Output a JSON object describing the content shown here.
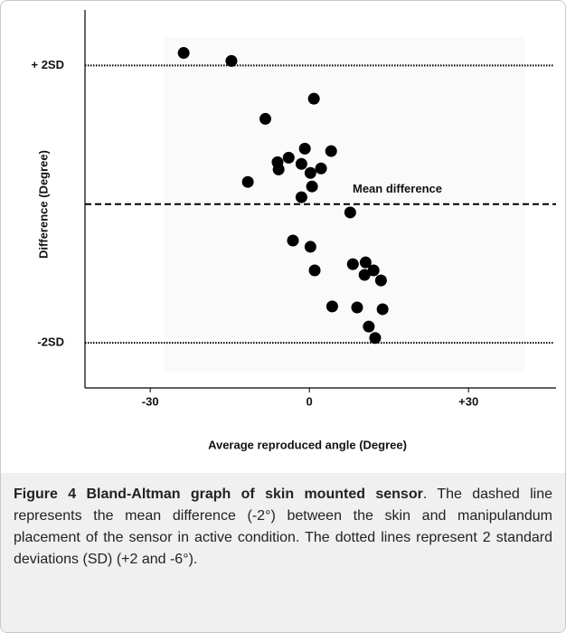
{
  "chart_data": {
    "type": "scatter",
    "ylabel": "Difference (Degree)",
    "xlabel": "Average reproduced angle (Degree)",
    "x": [
      -23.7,
      -14.7,
      0.85,
      -8.3,
      -0.85,
      4.1,
      -3.9,
      -6.0,
      -5.8,
      -1.5,
      2.2,
      0.2,
      -11.6,
      0.5,
      -1.5,
      7.7,
      -3.1,
      0.2,
      1.0,
      8.2,
      10.6,
      10.4,
      12.1,
      13.5,
      4.3,
      9.0,
      13.8,
      11.2,
      12.4
    ],
    "values": [
      2.36,
      2.13,
      1.04,
      0.46,
      -0.4,
      -0.47,
      -0.66,
      -0.79,
      -1.0,
      -0.84,
      -0.97,
      -1.1,
      -1.36,
      -1.49,
      -1.8,
      -2.24,
      -3.05,
      -3.23,
      -3.91,
      -3.73,
      -3.68,
      -4.04,
      -3.91,
      -4.2,
      -4.95,
      -4.98,
      -5.03,
      -5.53,
      -5.86
    ],
    "color": "#000000",
    "xlim": [
      -42.3,
      46.5
    ],
    "ylim": [
      -7.3,
      3.6
    ],
    "xticks": [
      {
        "value": -30,
        "label": "-30"
      },
      0,
      {
        "value": 30,
        "label": "+30"
      }
    ],
    "yticks": [
      {
        "value": 2,
        "label": "+ 2SD"
      },
      {
        "value": -6,
        "label": "-2SD"
      }
    ],
    "mean_line": {
      "value": -2,
      "label": "Mean difference"
    }
  },
  "caption": {
    "label": "Figure 4",
    "title": "Bland-Altman graph of skin mounted sensor",
    "text": ". The dashed line represents the mean difference (-2°) between the skin and manipulandum placement of the sensor in active condition. The dotted lines represent 2 standard deviations (SD) (+2 and -6°)."
  }
}
